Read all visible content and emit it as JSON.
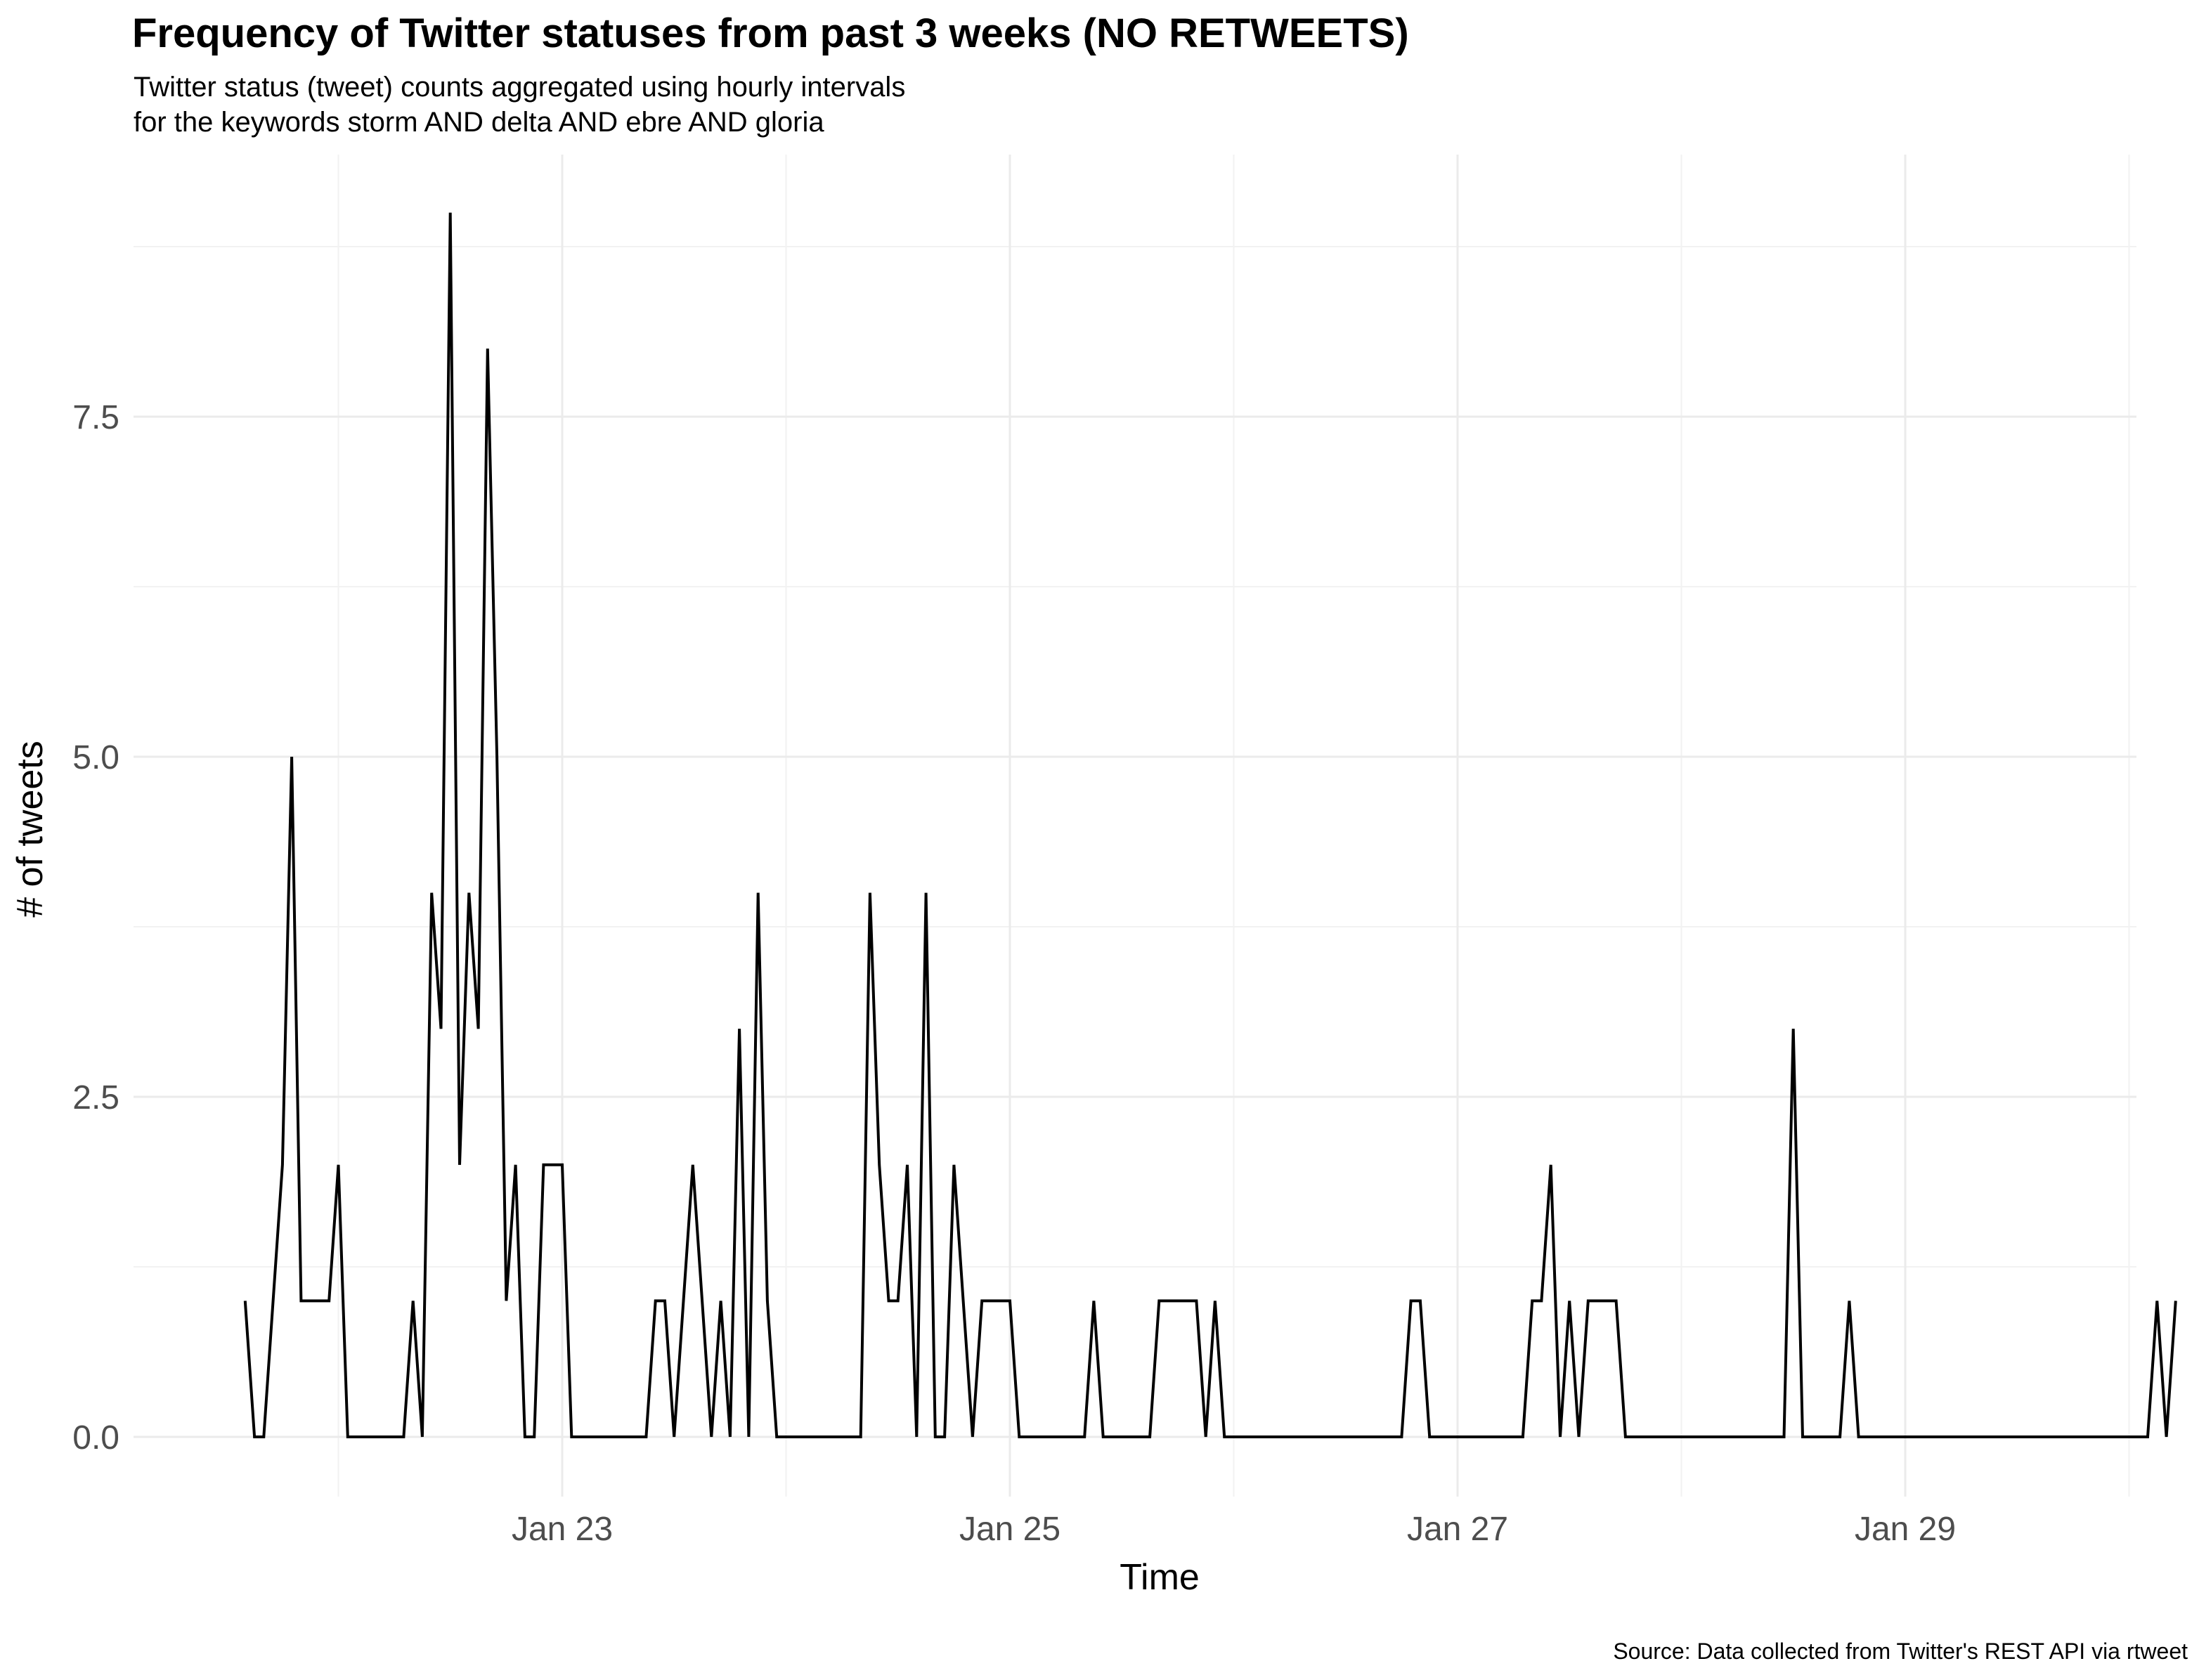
{
  "chart_data": {
    "type": "line",
    "title": "Frequency of Twitter statuses from past 3 weeks (NO RETWEETS)",
    "subtitle": [
      "Twitter status (tweet) counts aggregated using hourly intervals",
      "for the keywords storm AND delta AND ebre AND gloria"
    ],
    "caption": "Source: Data collected from Twitter's REST API via rtweet",
    "xlabel": "Time",
    "ylabel": "# of tweets",
    "x_ticks": [
      "Jan 23",
      "Jan 25",
      "Jan 27",
      "Jan 29"
    ],
    "y_ticks": [
      "0.0",
      "2.5",
      "5.0",
      "7.5"
    ],
    "ylim": [
      -0.45,
      9.3
    ],
    "xlim_days_from_jan23": [
      -1.92,
      7.02
    ],
    "grid": true,
    "legend": "none",
    "line_color": "#000000",
    "x_unit": "hours since 2020-01-21 14:00",
    "series": [
      {
        "x": [
          0,
          1,
          2,
          3,
          4,
          5,
          6,
          7,
          8,
          9,
          10,
          11,
          12,
          13,
          14,
          15,
          16,
          17,
          18,
          19,
          20,
          21,
          22,
          23,
          24,
          25,
          26,
          27,
          28,
          29,
          30,
          31,
          32,
          33,
          34,
          35,
          36,
          37,
          38,
          39,
          40,
          41,
          42,
          43,
          44,
          45,
          46,
          47,
          48,
          49,
          50,
          51,
          52,
          53,
          54,
          55,
          56,
          57,
          58,
          59,
          60,
          61,
          62,
          63,
          64,
          65,
          66,
          67,
          68,
          69,
          70,
          71,
          72,
          73,
          74,
          75,
          76,
          77,
          78,
          79,
          80,
          81,
          82,
          83,
          84,
          85,
          86,
          87,
          88,
          89,
          90,
          91,
          92,
          93,
          94,
          95,
          96,
          97,
          98,
          99,
          100,
          101,
          102,
          103,
          104,
          105,
          106,
          107,
          108,
          109,
          110,
          111,
          112,
          113,
          114,
          115,
          116,
          117,
          118,
          119,
          120,
          121,
          122,
          123,
          124,
          125,
          126,
          127,
          128,
          129,
          130,
          131,
          132,
          133,
          134,
          135,
          136,
          137,
          138,
          139,
          140,
          141,
          142,
          143,
          144,
          145,
          146,
          147,
          148,
          149,
          150,
          151,
          152,
          153,
          154,
          155,
          156,
          157,
          158,
          159,
          160,
          161,
          162,
          163,
          164,
          165,
          166,
          167,
          168,
          169,
          170,
          171,
          172,
          173,
          174,
          175,
          176,
          177,
          178,
          179,
          180,
          181,
          182,
          183,
          184,
          185,
          186,
          187,
          188,
          189,
          190,
          191,
          192,
          193,
          194,
          195,
          196,
          197,
          198,
          199,
          200,
          201,
          202,
          203,
          204,
          205,
          206,
          207
        ],
        "values": [
          1,
          0,
          0,
          1,
          2,
          5,
          1,
          1,
          1,
          1,
          2,
          0,
          0,
          0,
          0,
          0,
          0,
          0,
          1,
          0,
          4,
          3,
          9,
          2,
          4,
          3,
          8,
          5,
          1,
          2,
          0,
          0,
          2,
          2,
          2,
          0,
          0,
          0,
          0,
          0,
          0,
          0,
          0,
          0,
          1,
          1,
          0,
          1,
          2,
          1,
          0,
          1,
          0,
          3,
          0,
          4,
          1,
          0,
          0,
          0,
          0,
          0,
          0,
          0,
          0,
          0,
          0,
          4,
          2,
          1,
          1,
          2,
          0,
          4,
          0,
          0,
          2,
          1,
          0,
          1,
          1,
          1,
          1,
          0,
          0,
          0,
          0,
          0,
          0,
          0,
          0,
          1,
          0,
          0,
          0,
          0,
          0,
          0,
          1,
          1,
          1,
          1,
          1,
          0,
          1,
          0,
          0,
          0,
          0,
          0,
          0,
          0,
          0,
          0,
          0,
          0,
          0,
          0,
          0,
          0,
          0,
          0,
          0,
          0,
          0,
          1,
          1,
          0,
          0,
          0,
          0,
          0,
          0,
          0,
          0,
          0,
          0,
          0,
          1,
          1,
          2,
          0,
          1,
          0,
          1,
          1,
          1,
          1,
          0,
          0,
          0,
          0,
          0,
          0,
          0,
          0,
          0,
          0,
          0,
          0,
          0,
          0,
          0,
          0,
          0,
          0,
          3,
          0,
          0,
          0,
          0,
          0,
          1,
          0,
          0,
          0,
          0,
          0,
          0,
          0,
          0,
          0,
          0,
          0,
          0,
          0,
          0,
          0,
          0,
          0,
          0,
          0,
          0,
          0,
          0,
          0,
          0,
          0,
          0,
          0,
          0,
          0,
          0,
          0,
          0,
          1,
          0,
          1
        ]
      }
    ]
  }
}
